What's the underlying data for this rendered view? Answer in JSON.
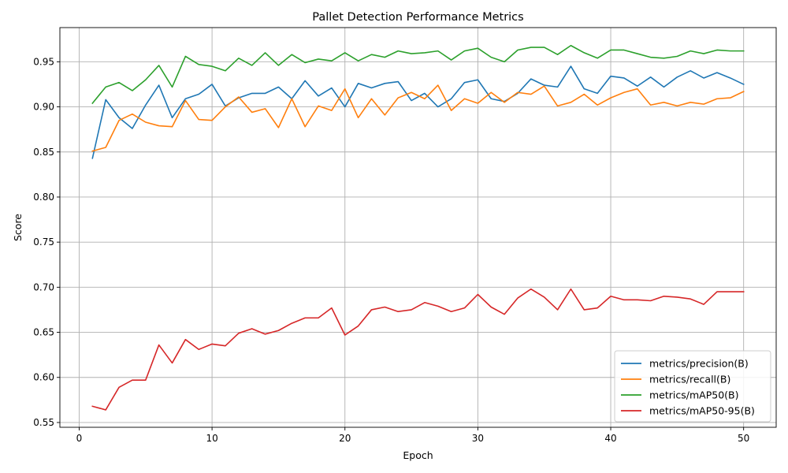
{
  "chart_data": {
    "type": "line",
    "title": "Pallet Detection Performance Metrics",
    "xlabel": "Epoch",
    "ylabel": "Score",
    "xlim": [
      -1.45,
      52.45
    ],
    "ylim": [
      0.5447,
      0.9879
    ],
    "xticks": [
      0,
      10,
      20,
      30,
      40,
      50
    ],
    "xtick_labels": [
      "0",
      "10",
      "20",
      "30",
      "40",
      "50"
    ],
    "yticks": [
      0.55,
      0.6,
      0.65,
      0.7,
      0.75,
      0.8,
      0.85,
      0.9,
      0.95
    ],
    "ytick_labels": [
      "0.55",
      "0.60",
      "0.65",
      "0.70",
      "0.75",
      "0.80",
      "0.85",
      "0.90",
      "0.95"
    ],
    "grid": true,
    "legend_position": "lower-right",
    "x": [
      1,
      2,
      3,
      4,
      5,
      6,
      7,
      8,
      9,
      10,
      11,
      12,
      13,
      14,
      15,
      16,
      17,
      18,
      19,
      20,
      21,
      22,
      23,
      24,
      25,
      26,
      27,
      28,
      29,
      30,
      31,
      32,
      33,
      34,
      35,
      36,
      37,
      38,
      39,
      40,
      41,
      42,
      43,
      44,
      45,
      46,
      47,
      48,
      49,
      50
    ],
    "series": [
      {
        "name": "metrics/precision(B)",
        "color": "#1f77b4",
        "values": [
          0.843,
          0.908,
          0.888,
          0.876,
          0.902,
          0.924,
          0.888,
          0.909,
          0.914,
          0.925,
          0.901,
          0.91,
          0.915,
          0.915,
          0.922,
          0.909,
          0.929,
          0.912,
          0.921,
          0.9,
          0.926,
          0.921,
          0.926,
          0.928,
          0.907,
          0.915,
          0.9,
          0.909,
          0.927,
          0.93,
          0.909,
          0.906,
          0.915,
          0.931,
          0.924,
          0.922,
          0.945,
          0.92,
          0.915,
          0.934,
          0.932,
          0.923,
          0.933,
          0.922,
          0.933,
          0.94,
          0.932,
          0.938,
          0.932,
          0.925
        ]
      },
      {
        "name": "metrics/recall(B)",
        "color": "#ff7f0e",
        "values": [
          0.851,
          0.855,
          0.885,
          0.892,
          0.883,
          0.879,
          0.878,
          0.907,
          0.886,
          0.885,
          0.9,
          0.911,
          0.894,
          0.898,
          0.877,
          0.909,
          0.878,
          0.901,
          0.896,
          0.92,
          0.888,
          0.909,
          0.891,
          0.91,
          0.916,
          0.909,
          0.924,
          0.896,
          0.909,
          0.904,
          0.916,
          0.905,
          0.916,
          0.914,
          0.923,
          0.901,
          0.905,
          0.914,
          0.902,
          0.91,
          0.916,
          0.92,
          0.902,
          0.905,
          0.901,
          0.905,
          0.903,
          0.909,
          0.91,
          0.917
        ]
      },
      {
        "name": "metrics/mAP50(B)",
        "color": "#2ca02c",
        "values": [
          0.904,
          0.922,
          0.927,
          0.918,
          0.93,
          0.946,
          0.922,
          0.956,
          0.947,
          0.945,
          0.94,
          0.954,
          0.946,
          0.96,
          0.946,
          0.958,
          0.949,
          0.953,
          0.951,
          0.96,
          0.951,
          0.958,
          0.955,
          0.962,
          0.959,
          0.96,
          0.962,
          0.952,
          0.962,
          0.965,
          0.955,
          0.95,
          0.963,
          0.966,
          0.966,
          0.958,
          0.968,
          0.96,
          0.954,
          0.963,
          0.963,
          0.959,
          0.955,
          0.954,
          0.956,
          0.962,
          0.959,
          0.963,
          0.962,
          0.962
        ]
      },
      {
        "name": "metrics/mAP50-95(B)",
        "color": "#d62728",
        "values": [
          0.568,
          0.564,
          0.589,
          0.597,
          0.597,
          0.636,
          0.616,
          0.642,
          0.631,
          0.637,
          0.635,
          0.649,
          0.654,
          0.648,
          0.652,
          0.66,
          0.666,
          0.666,
          0.677,
          0.647,
          0.657,
          0.675,
          0.678,
          0.673,
          0.675,
          0.683,
          0.679,
          0.673,
          0.677,
          0.692,
          0.678,
          0.67,
          0.688,
          0.698,
          0.689,
          0.675,
          0.698,
          0.675,
          0.677,
          0.69,
          0.686,
          0.686,
          0.685,
          0.69,
          0.689,
          0.687,
          0.681,
          0.695,
          0.695,
          0.695
        ]
      }
    ]
  }
}
